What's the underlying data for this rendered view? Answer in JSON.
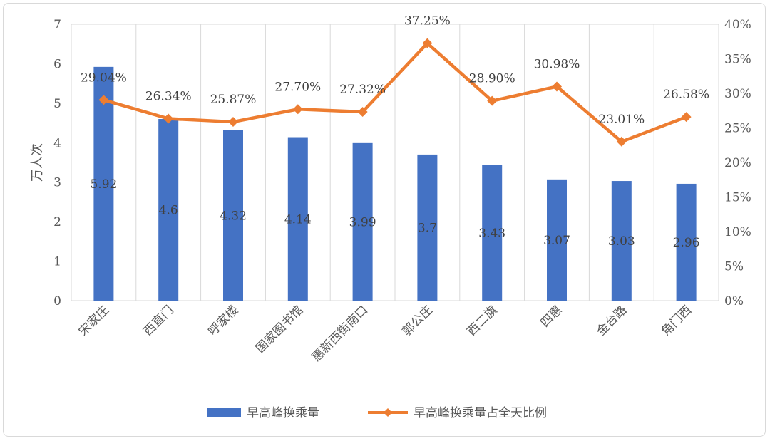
{
  "chart_data": {
    "type": "bar+line",
    "categories": [
      "宋家庄",
      "西直门",
      "呼家楼",
      "国家图书馆",
      "惠新西街南口",
      "郭公庄",
      "西二旗",
      "四惠",
      "金台路",
      "角门西"
    ],
    "series": [
      {
        "name": "早高峰换乘量",
        "type": "bar",
        "axis": "left",
        "values": [
          5.92,
          4.6,
          4.32,
          4.14,
          3.99,
          3.7,
          3.43,
          3.07,
          3.03,
          2.96
        ],
        "labels": [
          "5.92",
          "4.6",
          "4.32",
          "4.14",
          "3.99",
          "3.7",
          "3.43",
          "3.07",
          "3.03",
          "2.96"
        ]
      },
      {
        "name": "早高峰换乘量占全天比例",
        "type": "line",
        "axis": "right",
        "values": [
          29.04,
          26.34,
          25.87,
          27.7,
          27.32,
          37.25,
          28.9,
          30.98,
          23.01,
          26.58
        ],
        "labels": [
          "29.04%",
          "26.34%",
          "25.87%",
          "27.70%",
          "27.32%",
          "37.25%",
          "28.90%",
          "30.98%",
          "23.01%",
          "26.58%"
        ]
      }
    ],
    "ylabel": "万人次",
    "ylim": [
      0,
      7
    ],
    "yticks": [
      "0",
      "1",
      "2",
      "3",
      "4",
      "5",
      "6",
      "7"
    ],
    "y2lim": [
      0,
      40
    ],
    "y2ticks": [
      "0%",
      "5%",
      "10%",
      "15%",
      "20%",
      "25%",
      "30%",
      "35%",
      "40%"
    ],
    "grid": true,
    "legend": "bottom",
    "colors": {
      "bar": "#4472C4",
      "line": "#ED7D31",
      "grid": "#d9d9d9",
      "text": "#595959"
    }
  }
}
